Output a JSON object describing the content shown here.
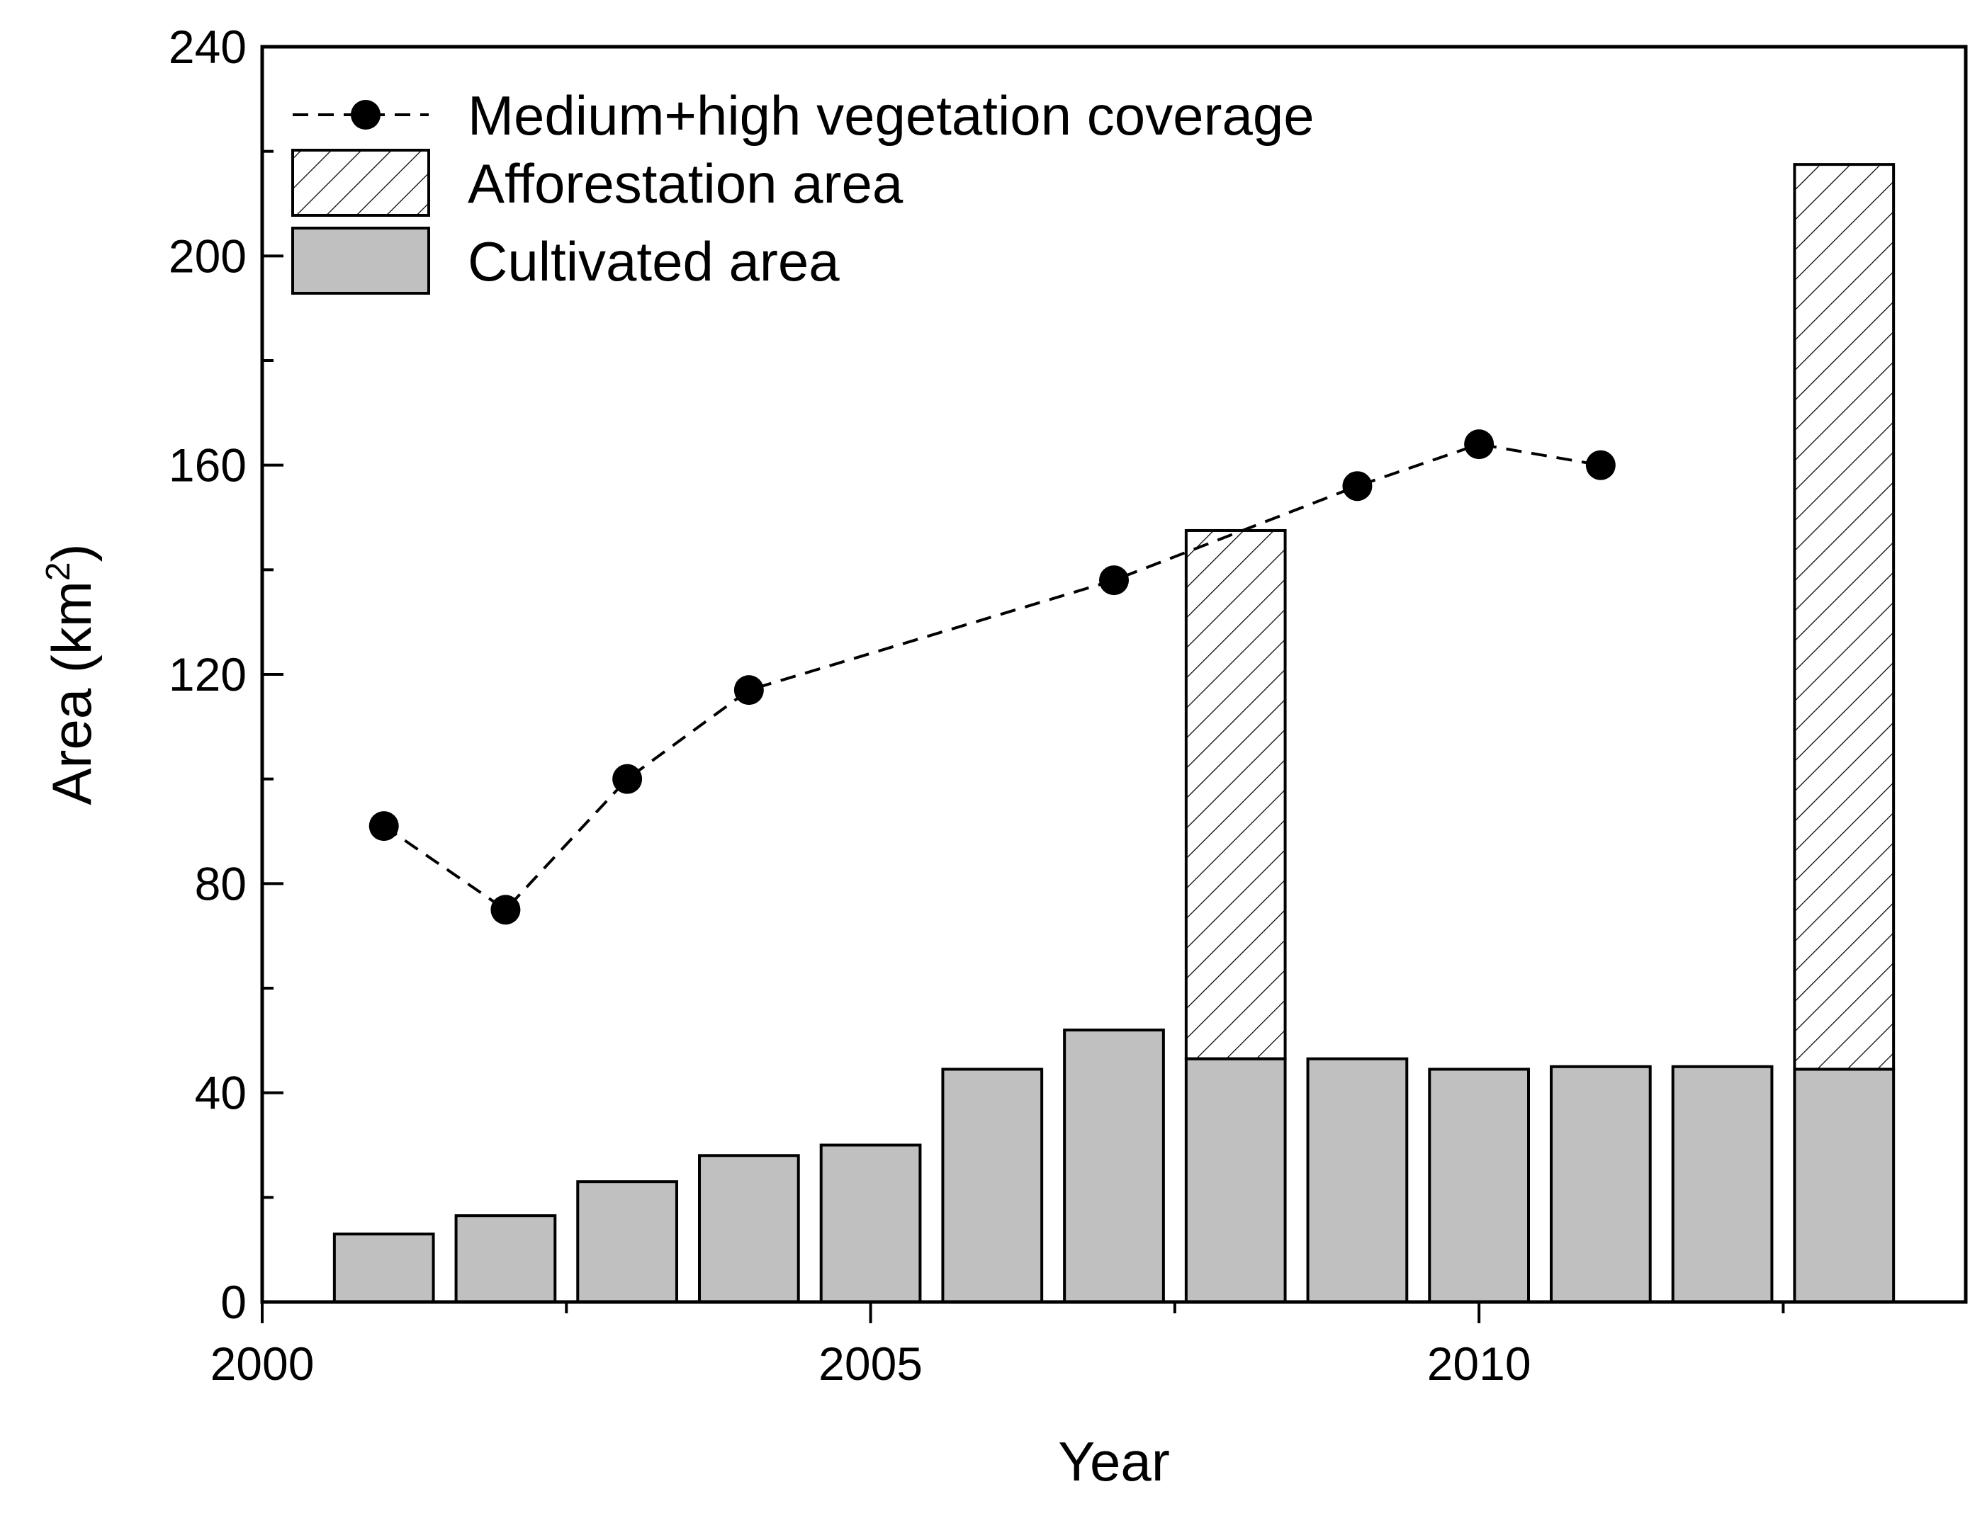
{
  "chart_data": {
    "type": "bar",
    "title": "",
    "xlabel": "Year",
    "ylabel_main": "Area (km",
    "ylabel_sup": "2",
    "ylabel_close": ")",
    "xlim": [
      2000,
      2014
    ],
    "ylim": [
      0,
      240
    ],
    "xticks": [
      2000,
      2005,
      2010
    ],
    "yticks": [
      0,
      40,
      80,
      120,
      160,
      200,
      240
    ],
    "grid": false,
    "legend_position": "top-left",
    "x": [
      2001,
      2002,
      2003,
      2004,
      2005,
      2006,
      2007,
      2008,
      2009,
      2010,
      2011,
      2012,
      2013
    ],
    "series": [
      {
        "name": "Cultivated area",
        "kind": "bar",
        "color": "#c0c0c0",
        "values": [
          13,
          16.5,
          23,
          28,
          30,
          44.5,
          52,
          46.5,
          46.5,
          44.5,
          45,
          45,
          44.5
        ]
      },
      {
        "name": "Afforestation area",
        "kind": "stacked-bar-hatched",
        "color": "#ffffff",
        "x": [
          2008,
          2013
        ],
        "values": [
          101,
          173
        ]
      },
      {
        "name": "Medium+high vegetation coverage",
        "kind": "line-dashed-markers",
        "color": "#000000",
        "x": [
          2001,
          2002,
          2003,
          2004,
          2007,
          2009,
          2010,
          2011
        ],
        "values": [
          91,
          75,
          100,
          117,
          138,
          156,
          164,
          160
        ]
      }
    ]
  }
}
